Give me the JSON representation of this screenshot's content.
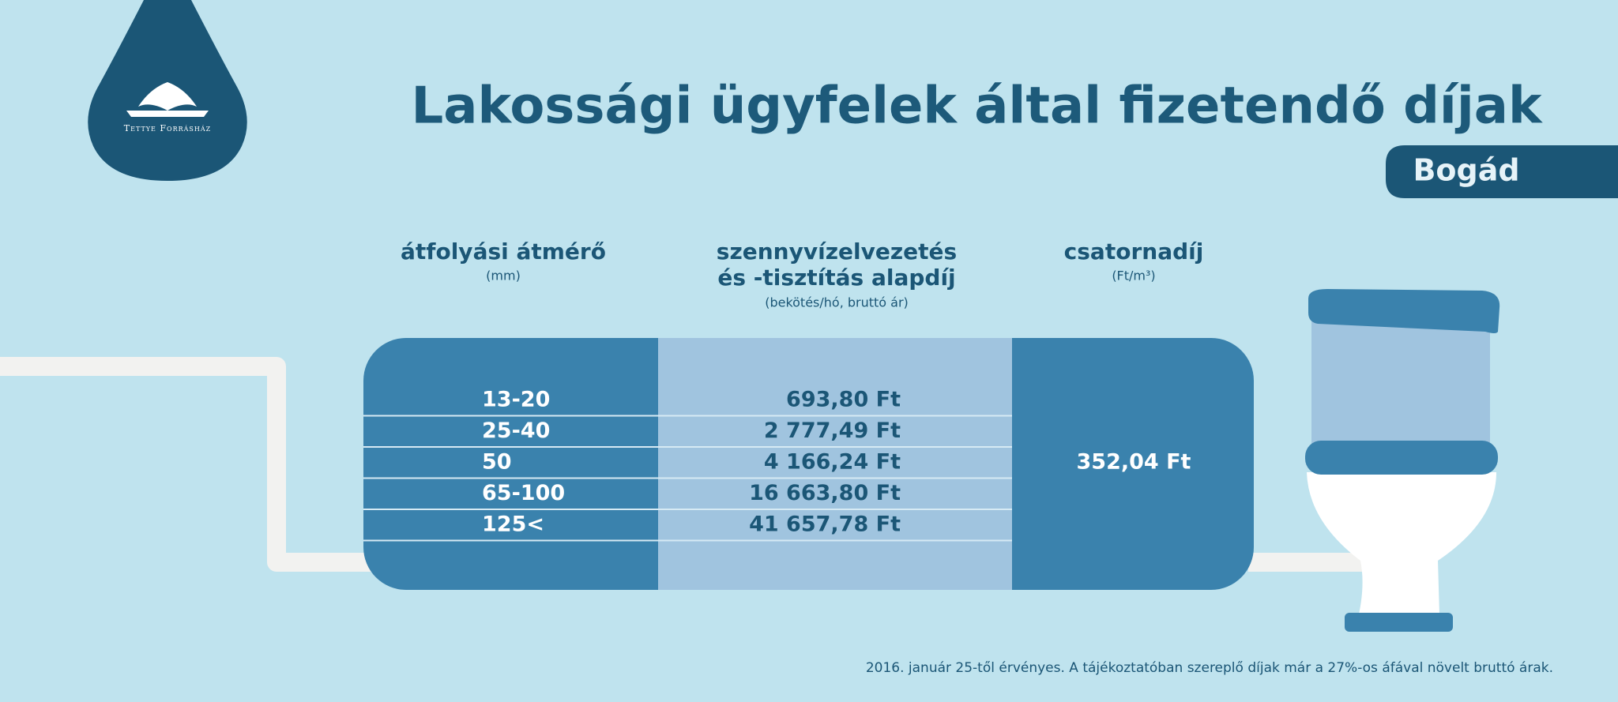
{
  "logo": {
    "text": "Tettye Forrásház"
  },
  "header": {
    "title": "Lakossági ügyfelek által fizetendő díjak",
    "location": "Bogád"
  },
  "table": {
    "columns": [
      {
        "title_lines": [
          "átfolyási átmérő"
        ],
        "unit": "(mm)"
      },
      {
        "title_lines": [
          "szennyvízelvezetés",
          "és -tisztítás alapdíj"
        ],
        "unit": "(bekötés/hó, bruttó ár)"
      },
      {
        "title_lines": [
          "csatornadíj"
        ],
        "unit": "(Ft/m³)"
      }
    ],
    "rows": [
      [
        "13-20",
        "693,80 Ft"
      ],
      [
        "25-40",
        "2 777,49 Ft"
      ],
      [
        "50",
        "4 166,24 Ft"
      ],
      [
        "65-100",
        "16 663,80 Ft"
      ],
      [
        "125<",
        "41 657,78 Ft"
      ]
    ],
    "fee": "352,04 Ft"
  },
  "footnote": "2016. január 25-től érvényes. A tájékoztatóban szereplő díjak már a 27%-os áfával növelt bruttó árak."
}
